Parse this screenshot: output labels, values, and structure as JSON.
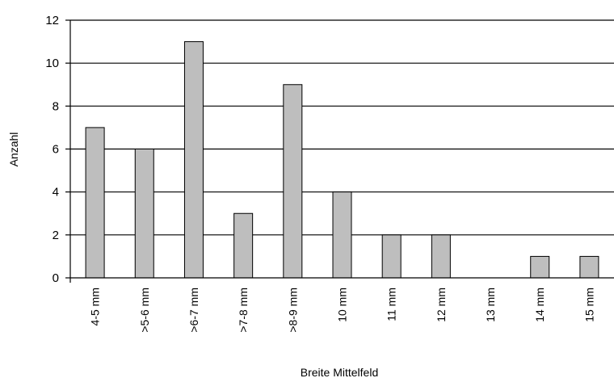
{
  "chart_data": {
    "type": "bar",
    "title": "",
    "xlabel": "Breite Mittelfeld",
    "ylabel": "Anzahl",
    "categories": [
      "4-5 mm",
      ">5-6 mm",
      ">6-7 mm",
      ">7-8 mm",
      ">8-9 mm",
      "10 mm",
      "11 mm",
      "12 mm",
      "13 mm",
      "14 mm",
      "15 mm"
    ],
    "values": [
      7,
      6,
      11,
      3,
      9,
      4,
      2,
      2,
      0,
      1,
      1
    ],
    "ylim": [
      0,
      12
    ],
    "yticks": [
      0,
      2,
      4,
      6,
      8,
      10,
      12
    ],
    "grid": true,
    "bar_color": "#bebebe",
    "edge_color": "#000000"
  }
}
